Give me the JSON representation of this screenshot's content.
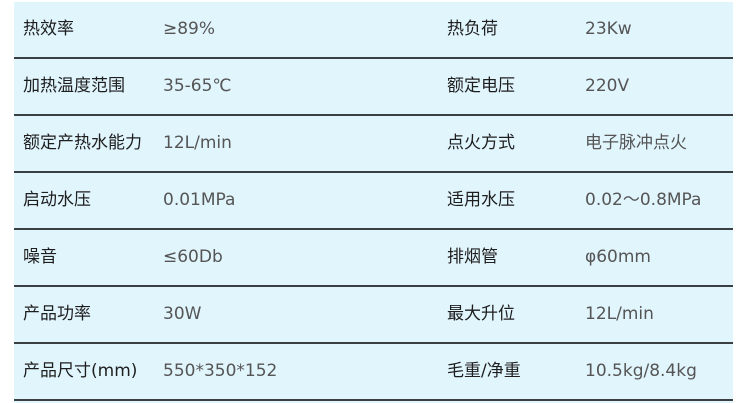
{
  "rows": [
    {
      "label1": "热效率",
      "value1": "≥89%",
      "label2": "热负荷",
      "value2": "23Kw"
    },
    {
      "label1": "加热温度范围",
      "value1": "35-65℃",
      "label2": "额定电压",
      "value2": "220V"
    },
    {
      "label1": "额定产热水能力",
      "value1": "12L/min",
      "label2": "点火方式",
      "value2": "电子脉冲点火"
    },
    {
      "label1": "启动水压",
      "value1": "0.01MPa",
      "label2": "适用水压",
      "value2": "0.02～0.8MPa"
    },
    {
      "label1": "噪音",
      "value1": "≤60Db",
      "label2": "排烟管",
      "value2": "φ60mm"
    },
    {
      "label1": "产品功率",
      "value1": "30W",
      "label2": "最大升位",
      "value2": "12L/min"
    },
    {
      "label1": "产品尺寸(mm)",
      "value1": "550*350*152",
      "label2": "毛重/净重",
      "value2": "10.5kg/8.4kg"
    }
  ]
}
